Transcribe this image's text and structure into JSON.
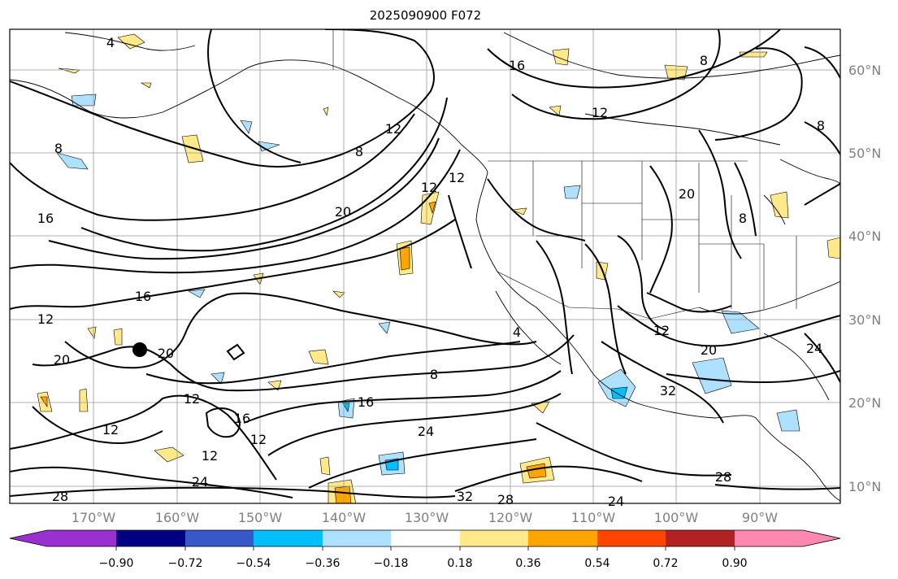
{
  "title": "2025090900 F072",
  "lat_labels": [
    "60°N",
    "50°N",
    "40°N",
    "30°N",
    "20°N",
    "10°N"
  ],
  "lon_labels": [
    "170°W",
    "160°W",
    "150°W",
    "140°W",
    "130°W",
    "120°W",
    "110°W",
    "100°W",
    "90°W"
  ],
  "colorbar": {
    "ticks": [
      "−0.90",
      "−0.72",
      "−0.54",
      "−0.36",
      "−0.18",
      "0.18",
      "0.36",
      "0.54",
      "0.72",
      "0.90"
    ],
    "colors": [
      "#9b30d0",
      "#000080",
      "#3658c8",
      "#00bfff",
      "#aee0ff",
      "#ffffff",
      "#ffe98a",
      "#ffa500",
      "#ff4500",
      "#b22222",
      "#ff88b0"
    ]
  },
  "contour_labels": [
    "4",
    "8",
    "12",
    "16",
    "20",
    "24",
    "28",
    "32"
  ],
  "contour_label_text": [
    "4",
    "16",
    "8",
    "12",
    "8",
    "12",
    "8",
    "12",
    "20",
    "12",
    "16",
    "20",
    "8",
    "8",
    "16",
    "12",
    "20",
    "20",
    "4",
    "8",
    "16",
    "24",
    "12",
    "12",
    "16",
    "12",
    "12",
    "24",
    "28",
    "32",
    "28",
    "24",
    "12",
    "20",
    "32",
    "28",
    "24"
  ]
}
